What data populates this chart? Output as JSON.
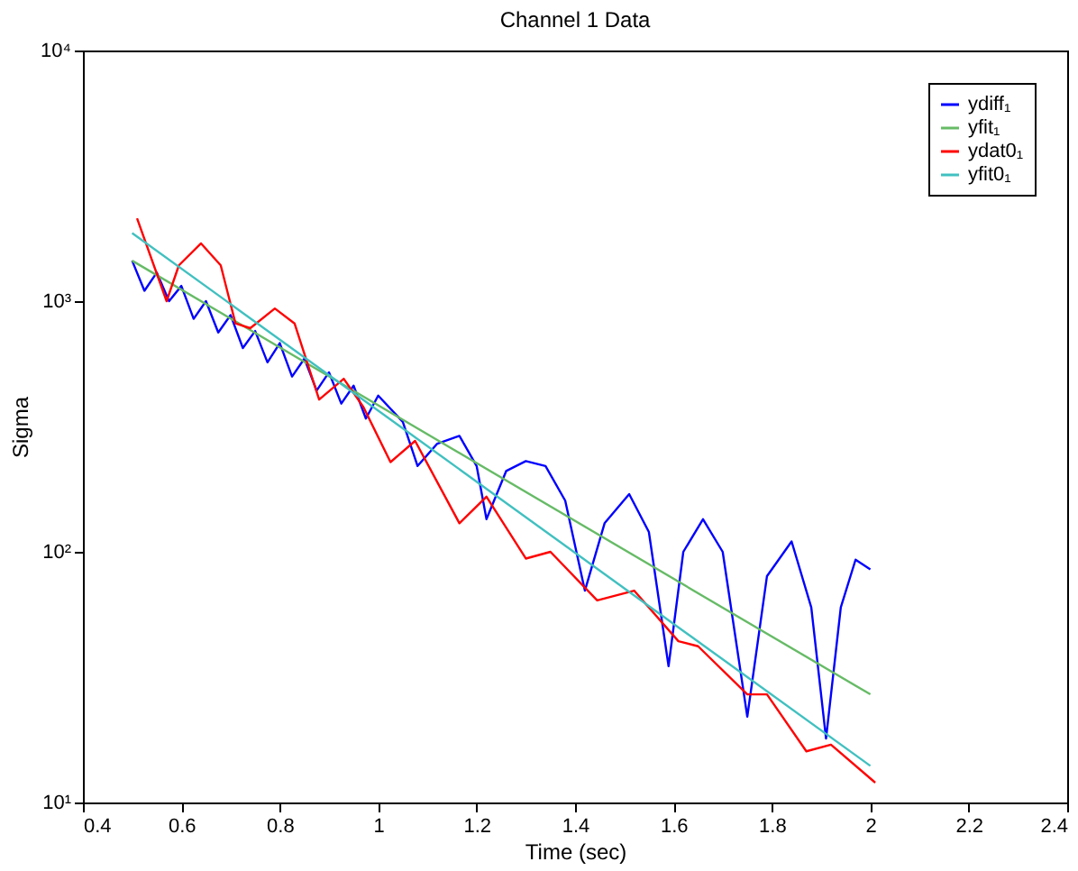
{
  "chart_data": {
    "type": "line",
    "title": "Channel 1 Data",
    "xlabel": "Time (sec)",
    "ylabel": "Sigma",
    "log": "y",
    "xlim": [
      0.4,
      2.4
    ],
    "xticks": [
      0.4,
      0.6,
      0.8,
      1,
      1.2,
      1.4,
      1.6,
      1.8,
      2,
      2.2,
      2.4
    ],
    "ylim": [
      10,
      10000
    ],
    "yticks": [
      {
        "value": 10,
        "label": "10¹"
      },
      {
        "value": 100,
        "label": "10²"
      },
      {
        "value": 1000,
        "label": "10³"
      },
      {
        "value": 10000,
        "label": "10⁴"
      }
    ],
    "legend": "top right",
    "grid": false,
    "line_style": "solid",
    "marker": "none",
    "series": [
      {
        "name": "ydiff₁",
        "color": "#0000ff",
        "x": [
          0.5,
          0.525,
          0.55,
          0.575,
          0.6,
          0.625,
          0.65,
          0.675,
          0.7,
          0.725,
          0.75,
          0.775,
          0.8,
          0.825,
          0.85,
          0.875,
          0.9,
          0.925,
          0.95,
          0.975,
          1.0,
          1.05,
          1.08,
          1.12,
          1.165,
          1.2,
          1.22,
          1.26,
          1.3,
          1.34,
          1.38,
          1.42,
          1.46,
          1.51,
          1.55,
          1.59,
          1.62,
          1.66,
          1.7,
          1.75,
          1.79,
          1.84,
          1.88,
          1.91,
          1.94,
          1.97,
          2.0
        ],
        "values": [
          1450,
          1100,
          1300,
          1000,
          1150,
          850,
          1000,
          750,
          880,
          650,
          760,
          570,
          680,
          500,
          590,
          440,
          520,
          390,
          460,
          340,
          420,
          330,
          220,
          270,
          290,
          220,
          135,
          210,
          230,
          220,
          160,
          70,
          130,
          170,
          120,
          35,
          100,
          135,
          100,
          22,
          80,
          110,
          60,
          18,
          60,
          93,
          85
        ]
      },
      {
        "name": "yfit₁",
        "color": "#66bb66",
        "x": [
          0.5,
          2.0
        ],
        "values": [
          1450,
          27
        ]
      },
      {
        "name": "ydat0₁",
        "color": "#ff0000",
        "x": [
          0.51,
          0.57,
          0.595,
          0.64,
          0.68,
          0.71,
          0.74,
          0.79,
          0.83,
          0.88,
          0.93,
          0.97,
          1.025,
          1.075,
          1.165,
          1.22,
          1.3,
          1.35,
          1.445,
          1.52,
          1.61,
          1.65,
          1.75,
          1.79,
          1.87,
          1.92,
          2.01
        ],
        "values": [
          2140,
          1000,
          1390,
          1700,
          1390,
          815,
          780,
          935,
          815,
          405,
          490,
          378,
          228,
          277,
          130,
          166,
          94,
          100,
          64,
          70,
          44,
          42,
          27,
          27,
          16,
          17,
          12
        ]
      },
      {
        "name": "yfit0₁",
        "color": "#40c0c0",
        "x": [
          0.5,
          2.0
        ],
        "values": [
          1870,
          14
        ]
      }
    ]
  }
}
